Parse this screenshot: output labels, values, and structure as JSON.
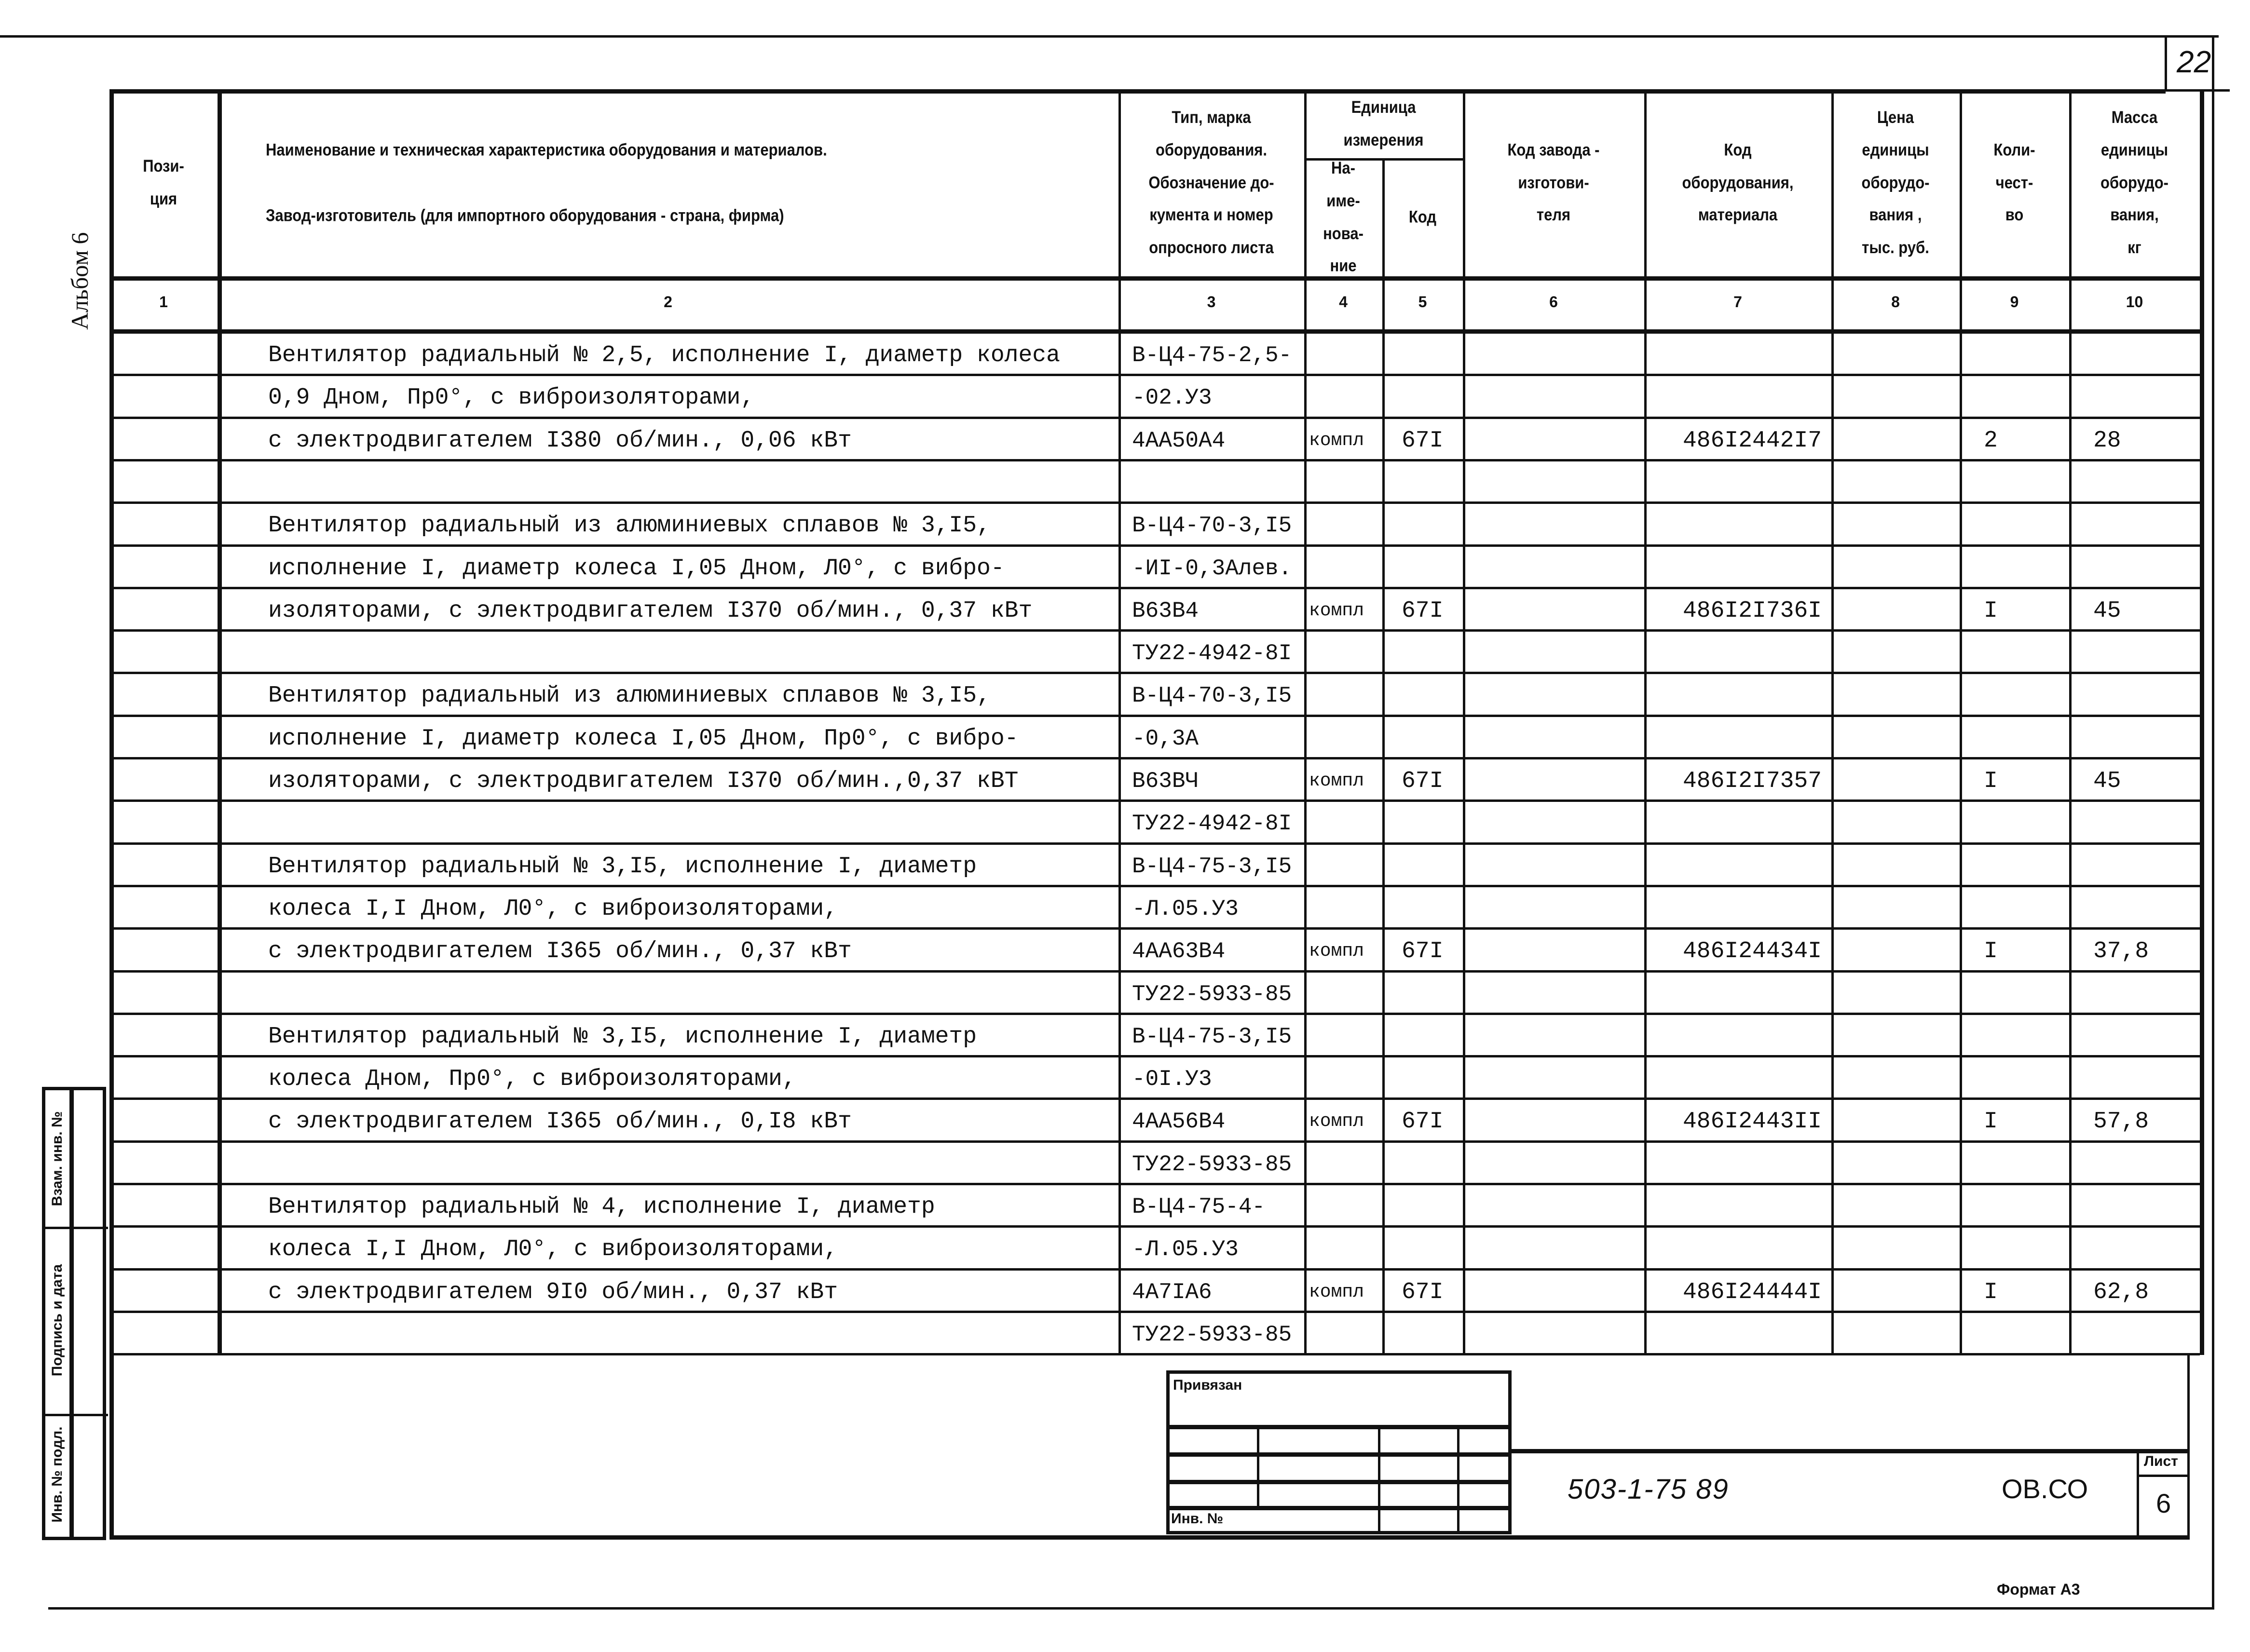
{
  "page_number": "22",
  "album_label": "Альбом 6",
  "side_stamp": [
    "Взам. инв. №",
    "Подпись и дата",
    "Инв. № подл."
  ],
  "header": {
    "col1": [
      "Пози-",
      "ция"
    ],
    "col2": [
      "Наименование и техническая характеристика  оборудования и материалов.",
      "Завод-изготовитель  (для импортного оборудования -  страна, фирма)"
    ],
    "col3": [
      "Тип,      марка",
      "оборудования.",
      "Обозначение  до-",
      "кумента  и  номер",
      "опросного листа"
    ],
    "unit_group": [
      "Единица",
      "измерения"
    ],
    "col4": [
      "На-",
      "име-",
      "нова-",
      "ние"
    ],
    "col5": [
      "Код"
    ],
    "col6": [
      "Код  завода -",
      "изготови-",
      "теля"
    ],
    "col7": [
      "Код",
      "оборудования,",
      "материала"
    ],
    "col8": [
      "Цена",
      "единицы",
      "оборудо-",
      "вания ,",
      "тыс. руб."
    ],
    "col9": [
      "Коли-",
      "чест-",
      "во"
    ],
    "col10": [
      "Масса",
      "единицы",
      "оборудо-",
      "вания,",
      "кг"
    ],
    "numbers": [
      "1",
      "2",
      "3",
      "4",
      "5",
      "6",
      "7",
      "8",
      "9",
      "10"
    ]
  },
  "rows": [
    {
      "name": "Вентилятор радиальный № 2,5, исполнение I, диаметр колеса",
      "type": "В-Ц4-75-2,5-"
    },
    {
      "name": "0,9 Дном, Пр0°, с виброизоляторами,",
      "type": "-02.У3"
    },
    {
      "name": "с электродвигателем I380 об/мин., 0,06 кВт",
      "type": "4АА50А4",
      "unit": "компл",
      "unit_code": "67I",
      "equip_code": "486I2442I7",
      "qty": "2",
      "mass": "28"
    },
    {
      "name": "",
      "type": ""
    },
    {
      "name": "Вентилятор радиальный из алюминиевых сплавов № 3,I5,",
      "type": "В-Ц4-70-3,I5"
    },
    {
      "name": "исполнение I, диаметр колеса I,05 Дном, Л0°, с вибро-",
      "type": "-ИI-0,3Алев."
    },
    {
      "name": "изоляторами, с электродвигателем I370 об/мин., 0,37 кВт",
      "type": "В63В4",
      "unit": "компл",
      "unit_code": "67I",
      "equip_code": "486I2I736I",
      "qty": "I",
      "mass": "45"
    },
    {
      "name": "",
      "type": "ТУ22-4942-8I"
    },
    {
      "name": "Вентилятор радиальный из алюминиевых сплавов № 3,I5,",
      "type": "В-Ц4-70-3,I5"
    },
    {
      "name": "исполнение I, диаметр колеса I,05 Дном, Пр0°, с вибро-",
      "type": "-0,3А"
    },
    {
      "name": "изоляторами, с электродвигателем I370 об/мин.,0,37 кВТ",
      "type": "В63ВЧ",
      "unit": "компл",
      "unit_code": "67I",
      "equip_code": "486I2I7357",
      "qty": "I",
      "mass": "45"
    },
    {
      "name": "",
      "type": "ТУ22-4942-8I"
    },
    {
      "name": "Вентилятор радиальный № 3,I5, исполнение I, диаметр",
      "type": "В-Ц4-75-3,I5"
    },
    {
      "name": "колеса I,I Дном, Л0°, с виброизоляторами,",
      "type": "-Л.05.У3"
    },
    {
      "name": "с электродвигателем I365 об/мин., 0,37 кВт",
      "type": "4АА63В4",
      "unit": "компл",
      "unit_code": "67I",
      "equip_code": "486I24434I",
      "qty": "I",
      "mass": "37,8"
    },
    {
      "name": "",
      "type": "ТУ22-5933-85"
    },
    {
      "name": "Вентилятор радиальный № 3,I5, исполнение I, диаметр",
      "type": "В-Ц4-75-3,I5"
    },
    {
      "name": "колеса Дном, Пр0°, с виброизоляторами,",
      "type": "-0I.У3"
    },
    {
      "name": "с электродвигателем I365 об/мин., 0,I8 кВт",
      "type": "4АА56В4",
      "unit": "компл",
      "unit_code": "67I",
      "equip_code": "486I2443II",
      "qty": "I",
      "mass": "57,8"
    },
    {
      "name": "",
      "type": "ТУ22-5933-85"
    },
    {
      "name": "Вентилятор радиальный № 4, исполнение I, диаметр",
      "type": "В-Ц4-75-4-"
    },
    {
      "name": "колеса I,I Дном, Л0°, с виброизоляторами,",
      "type": "-Л.05.У3"
    },
    {
      "name": "с электродвигателем 9I0 об/мин., 0,37 кВт",
      "type": "4А7IА6",
      "unit": "компл",
      "unit_code": "67I",
      "equip_code": "486I24444I",
      "qty": "I",
      "mass": "62,8"
    },
    {
      "name": "",
      "type": "ТУ22-5933-85"
    }
  ],
  "title_block": {
    "bound_label": "Привязан",
    "inv_label": "Инв. №",
    "doc_number": "503-1-75 89",
    "doc_code": "ОВ.СО",
    "sheet_label": "Лист",
    "sheet_number": "6"
  },
  "format_label": "Формат А3"
}
